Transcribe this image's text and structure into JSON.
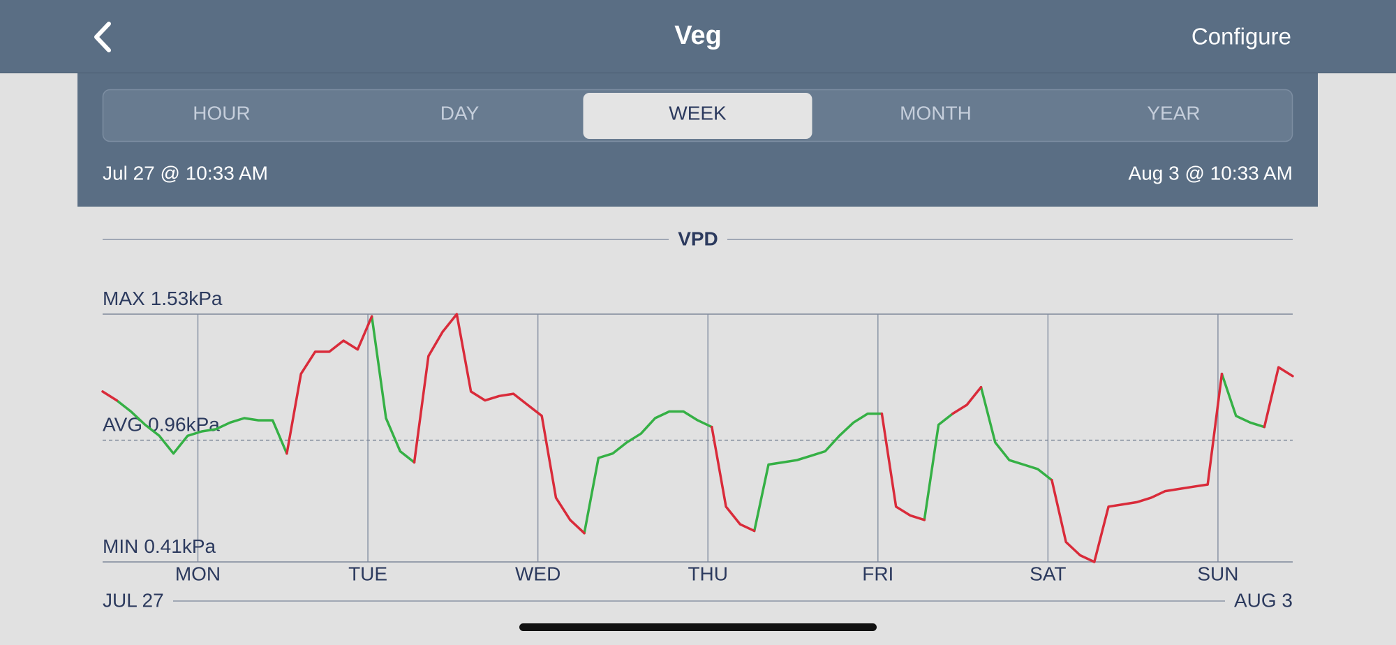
{
  "header": {
    "title": "Veg",
    "action": "Configure"
  },
  "tabs": {
    "items": [
      "HOUR",
      "DAY",
      "WEEK",
      "MONTH",
      "YEAR"
    ],
    "selected": 2
  },
  "date_range": {
    "start": "Jul 27 @ 10:33 AM",
    "end": "Aug 3 @ 10:33 AM"
  },
  "chart_data": {
    "type": "line",
    "title": "VPD",
    "ylim": [
      0.41,
      1.53
    ],
    "reference_lines": [
      {
        "label": "MAX",
        "value": 1.53,
        "unit": "kPa",
        "style": "solid"
      },
      {
        "label": "AVG",
        "value": 0.96,
        "unit": "kPa",
        "style": "dashed"
      },
      {
        "label": "MIN",
        "value": 0.41,
        "unit": "kPa",
        "style": "solid"
      }
    ],
    "xlim": [
      0,
      168
    ],
    "xticks": [
      {
        "value": 13.45,
        "label": "MON"
      },
      {
        "value": 37.45,
        "label": "TUE"
      },
      {
        "value": 61.45,
        "label": "WED"
      },
      {
        "value": 85.45,
        "label": "THU"
      },
      {
        "value": 109.45,
        "label": "FRI"
      },
      {
        "value": 133.45,
        "label": "SAT"
      },
      {
        "value": 157.45,
        "label": "SUN"
      }
    ],
    "range_labels": [
      "JUL 27",
      "AUG 3"
    ],
    "grid": true,
    "x": [
      0,
      2,
      4,
      6,
      8,
      10,
      12,
      14,
      16,
      18,
      20,
      22,
      24,
      26,
      28,
      30,
      32,
      34,
      36,
      38,
      40,
      42,
      44,
      46,
      48,
      50,
      52,
      54,
      56,
      58,
      60,
      62,
      64,
      66,
      68,
      70,
      72,
      74,
      76,
      78,
      80,
      82,
      84,
      86,
      88,
      90,
      92,
      94,
      96,
      98,
      100,
      102,
      104,
      106,
      108,
      110,
      112,
      114,
      116,
      118,
      120,
      122,
      124,
      126,
      128,
      130,
      132,
      134,
      136,
      138,
      140,
      142,
      144,
      146,
      148,
      150,
      152,
      154,
      156,
      158,
      160,
      162,
      164,
      166,
      168
    ],
    "series": [
      {
        "color": "#35b045",
        "values": [
          null,
          1.14,
          1.09,
          1.03,
          0.98,
          0.9,
          0.98,
          1.0,
          1.01,
          1.04,
          1.06,
          1.05,
          1.05,
          0.9,
          null,
          null,
          null,
          null,
          null,
          1.52,
          1.06,
          0.91,
          0.86,
          null,
          null,
          null,
          null,
          null,
          null,
          null,
          null,
          null,
          null,
          null,
          0.54,
          0.88,
          0.9,
          0.95,
          0.99,
          1.06,
          1.09,
          1.09,
          1.05,
          1.02,
          null,
          null,
          0.55,
          0.85,
          0.86,
          0.87,
          0.89,
          0.91,
          0.98,
          1.04,
          1.08,
          1.08,
          null,
          null,
          0.6,
          1.03,
          1.08,
          null,
          1.2,
          0.95,
          0.87,
          0.85,
          0.83,
          0.78,
          null,
          null,
          null,
          null,
          null,
          null,
          null,
          null,
          null,
          null,
          null,
          1.26,
          1.07,
          1.04,
          1.02,
          null,
          null
        ]
      },
      {
        "color": "#d92b3a",
        "values": [
          1.18,
          1.14,
          null,
          null,
          null,
          null,
          null,
          null,
          null,
          null,
          null,
          null,
          null,
          0.9,
          1.26,
          1.36,
          1.36,
          1.41,
          1.37,
          1.52,
          null,
          null,
          0.86,
          1.34,
          1.45,
          1.53,
          1.18,
          1.14,
          1.16,
          1.17,
          1.12,
          1.07,
          0.7,
          0.6,
          0.54,
          null,
          null,
          null,
          null,
          null,
          null,
          null,
          null,
          1.02,
          0.66,
          0.58,
          0.55,
          null,
          null,
          null,
          null,
          null,
          null,
          null,
          null,
          1.08,
          0.66,
          0.62,
          0.6,
          null,
          1.08,
          1.12,
          1.2,
          null,
          null,
          null,
          null,
          0.78,
          0.5,
          0.44,
          0.41,
          0.66,
          0.67,
          0.68,
          0.7,
          0.73,
          0.74,
          0.75,
          0.76,
          1.26,
          null,
          null,
          1.02,
          1.29,
          1.25
        ]
      }
    ]
  }
}
